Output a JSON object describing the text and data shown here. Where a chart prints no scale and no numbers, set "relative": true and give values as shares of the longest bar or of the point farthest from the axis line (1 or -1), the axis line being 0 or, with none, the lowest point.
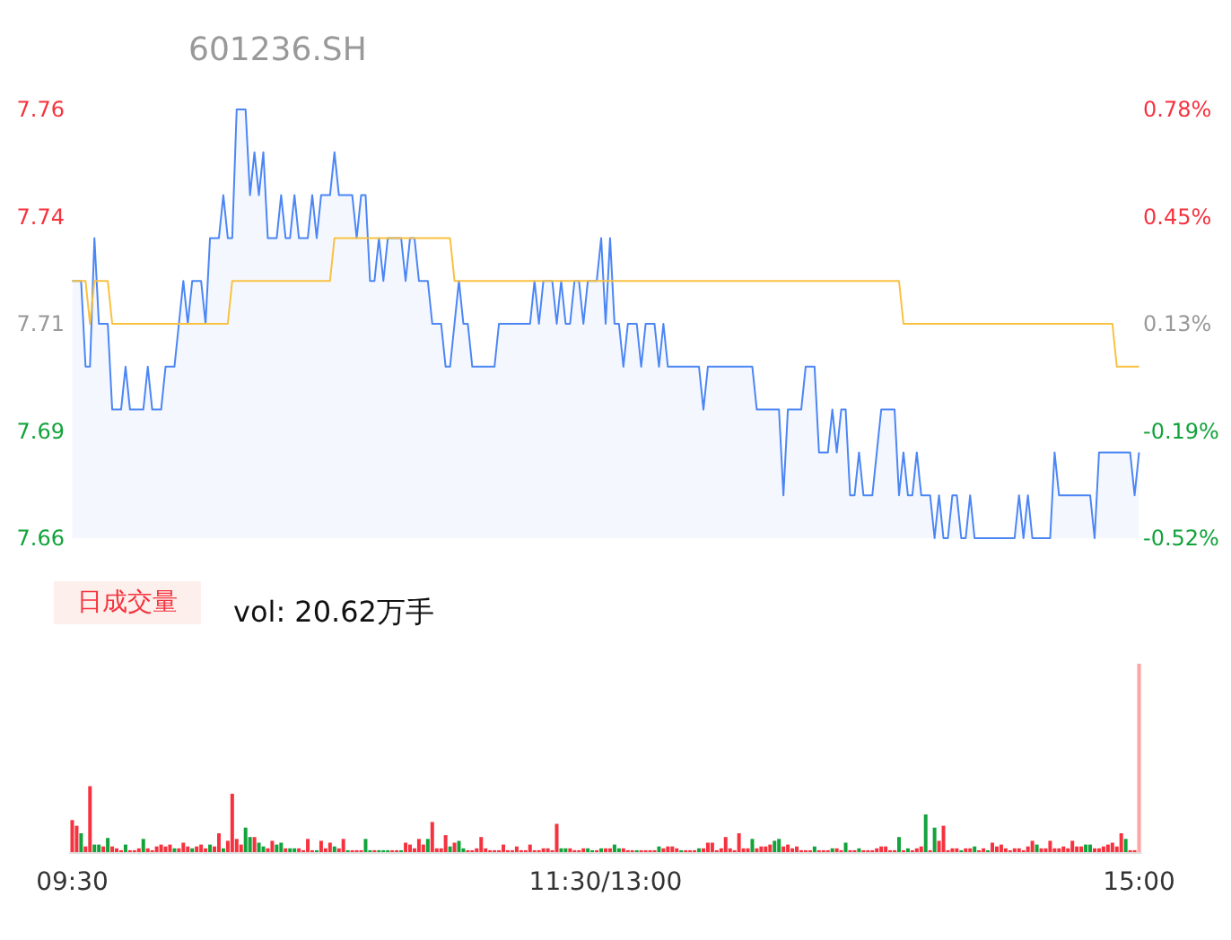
{
  "chart_data": [
    {
      "type": "area",
      "title": "601236.SH",
      "categories": [
        null,
        null,
        null,
        null,
        null,
        null,
        null,
        null,
        null,
        null,
        null,
        null,
        null,
        null,
        null,
        null,
        null,
        null,
        null,
        null,
        null,
        null,
        null,
        null,
        null,
        null,
        null,
        null,
        null,
        null,
        null,
        null,
        null,
        null,
        null,
        null,
        null,
        null,
        null,
        null,
        null,
        null,
        null,
        null,
        null,
        null,
        null,
        null,
        null,
        null,
        null,
        null,
        null,
        null,
        null,
        null,
        null,
        null,
        null,
        null,
        null,
        null,
        null,
        null,
        null,
        null,
        null,
        null,
        null,
        null,
        null,
        null,
        null,
        null,
        null,
        null,
        null,
        null,
        null,
        null,
        null,
        null,
        null,
        null,
        null,
        null,
        null,
        null,
        null,
        null,
        null,
        null,
        null,
        null,
        null,
        null,
        null,
        null,
        null,
        null,
        null,
        null,
        null,
        null,
        null,
        null,
        null,
        null,
        null,
        null,
        null,
        null,
        null,
        null,
        null,
        null,
        null,
        null,
        null,
        null,
        null,
        null,
        null,
        null,
        null,
        null,
        null,
        null,
        null,
        null,
        null,
        null,
        null,
        null,
        null,
        null,
        null,
        null,
        null,
        null,
        null,
        null,
        null,
        null,
        null,
        null,
        null,
        null,
        null,
        null,
        null,
        null,
        null,
        null,
        null,
        null,
        null,
        null,
        null,
        null,
        null,
        null,
        null,
        null,
        null,
        null,
        null,
        null,
        null,
        null,
        null,
        null,
        null,
        null,
        null,
        null,
        null,
        null,
        null,
        null,
        null,
        null,
        null,
        null,
        null,
        null,
        null,
        null,
        null,
        null,
        null,
        null,
        null,
        null,
        null,
        null,
        null,
        null,
        null,
        null,
        null,
        null,
        null,
        null,
        null,
        null,
        null,
        null,
        null,
        null,
        null,
        null,
        null,
        null,
        null,
        null,
        null,
        null,
        null,
        null,
        null,
        null,
        null,
        null,
        null,
        null,
        null,
        null,
        null,
        null,
        null,
        null,
        null,
        null,
        null,
        null,
        null,
        null,
        null,
        null,
        null
      ],
      "series": [
        {
          "type": "area",
          "color": "#4c86f5",
          "values": [
            7.72,
            7.72,
            7.72,
            7.7,
            7.7,
            7.73,
            7.71,
            7.71,
            7.71,
            7.69,
            7.69,
            7.69,
            7.7,
            7.69,
            7.69,
            7.69,
            7.69,
            7.7,
            7.69,
            7.69,
            7.69,
            7.7,
            7.7,
            7.7,
            7.71,
            7.72,
            7.71,
            7.72,
            7.72,
            7.72,
            7.71,
            7.73,
            7.73,
            7.73,
            7.74,
            7.73,
            7.73,
            7.76,
            7.76,
            7.76,
            7.74,
            7.75,
            7.74,
            7.75,
            7.73,
            7.73,
            7.73,
            7.74,
            7.73,
            7.73,
            7.74,
            7.73,
            7.73,
            7.73,
            7.74,
            7.73,
            7.74,
            7.74,
            7.74,
            7.75,
            7.74,
            7.74,
            7.74,
            7.74,
            7.73,
            7.74,
            7.74,
            7.72,
            7.72,
            7.73,
            7.72,
            7.73,
            7.73,
            7.73,
            7.73,
            7.72,
            7.73,
            7.73,
            7.72,
            7.72,
            7.72,
            7.71,
            7.71,
            7.71,
            7.7,
            7.7,
            7.71,
            7.72,
            7.71,
            7.71,
            7.7,
            7.7,
            7.7,
            7.7,
            7.7,
            7.7,
            7.71,
            7.71,
            7.71,
            7.71,
            7.71,
            7.71,
            7.71,
            7.71,
            7.72,
            7.71,
            7.72,
            7.72,
            7.72,
            7.71,
            7.72,
            7.71,
            7.71,
            7.72,
            7.72,
            7.71,
            7.72,
            7.72,
            7.72,
            7.73,
            7.71,
            7.73,
            7.71,
            7.71,
            7.7,
            7.71,
            7.71,
            7.71,
            7.7,
            7.71,
            7.71,
            7.71,
            7.7,
            7.71,
            7.7,
            7.7,
            7.7,
            7.7,
            7.7,
            7.7,
            7.7,
            7.7,
            7.69,
            7.7,
            7.7,
            7.7,
            7.7,
            7.7,
            7.7,
            7.7,
            7.7,
            7.7,
            7.7,
            7.7,
            7.69,
            7.69,
            7.69,
            7.69,
            7.69,
            7.69,
            7.67,
            7.69,
            7.69,
            7.69,
            7.69,
            7.7,
            7.7,
            7.7,
            7.68,
            7.68,
            7.68,
            7.69,
            7.68,
            7.69,
            7.69,
            7.67,
            7.67,
            7.68,
            7.67,
            7.67,
            7.67,
            7.68,
            7.69,
            7.69,
            7.69,
            7.69,
            7.67,
            7.68,
            7.67,
            7.67,
            7.68,
            7.67,
            7.67,
            7.67,
            7.66,
            7.67,
            7.66,
            7.66,
            7.67,
            7.67,
            7.66,
            7.66,
            7.67,
            7.66,
            7.66,
            7.66,
            7.66,
            7.66,
            7.66,
            7.66,
            7.66,
            7.66,
            7.66,
            7.67,
            7.66,
            7.67,
            7.66,
            7.66,
            7.66,
            7.66,
            7.66,
            7.68,
            7.67,
            7.67,
            7.67,
            7.67,
            7.67,
            7.67,
            7.67,
            7.67,
            7.66,
            7.68,
            7.68,
            7.68,
            7.68,
            7.68,
            7.68,
            7.68,
            7.68,
            7.67,
            7.68
          ]
        },
        {
          "type": "line",
          "color": "#f9c142",
          "values": [
            7.72,
            7.72,
            7.72,
            7.72,
            7.71,
            7.72,
            7.72,
            7.72,
            7.72,
            7.71,
            7.71,
            7.71,
            7.71,
            7.71,
            7.71,
            7.71,
            7.71,
            7.71,
            7.71,
            7.71,
            7.71,
            7.71,
            7.71,
            7.71,
            7.71,
            7.71,
            7.71,
            7.71,
            7.71,
            7.71,
            7.71,
            7.71,
            7.71,
            7.71,
            7.71,
            7.71,
            7.72,
            7.72,
            7.72,
            7.72,
            7.72,
            7.72,
            7.72,
            7.72,
            7.72,
            7.72,
            7.72,
            7.72,
            7.72,
            7.72,
            7.72,
            7.72,
            7.72,
            7.72,
            7.72,
            7.72,
            7.72,
            7.72,
            7.72,
            7.73,
            7.73,
            7.73,
            7.73,
            7.73,
            7.73,
            7.73,
            7.73,
            7.73,
            7.73,
            7.73,
            7.73,
            7.73,
            7.73,
            7.73,
            7.73,
            7.73,
            7.73,
            7.73,
            7.73,
            7.73,
            7.73,
            7.73,
            7.73,
            7.73,
            7.73,
            7.73,
            7.72,
            7.72,
            7.72,
            7.72,
            7.72,
            7.72,
            7.72,
            7.72,
            7.72,
            7.72,
            7.72,
            7.72,
            7.72,
            7.72,
            7.72,
            7.72,
            7.72,
            7.72,
            7.72,
            7.72,
            7.72,
            7.72,
            7.72,
            7.72,
            7.72,
            7.72,
            7.72,
            7.72,
            7.72,
            7.72,
            7.72,
            7.72,
            7.72,
            7.72,
            7.72,
            7.72,
            7.72,
            7.72,
            7.72,
            7.72,
            7.72,
            7.72,
            7.72,
            7.72,
            7.72,
            7.72,
            7.72,
            7.72,
            7.72,
            7.72,
            7.72,
            7.72,
            7.72,
            7.72,
            7.72,
            7.72,
            7.72,
            7.72,
            7.72,
            7.72,
            7.72,
            7.72,
            7.72,
            7.72,
            7.72,
            7.72,
            7.72,
            7.72,
            7.72,
            7.72,
            7.72,
            7.72,
            7.72,
            7.72,
            7.72,
            7.72,
            7.72,
            7.72,
            7.72,
            7.72,
            7.72,
            7.72,
            7.72,
            7.72,
            7.72,
            7.72,
            7.72,
            7.72,
            7.72,
            7.72,
            7.72,
            7.72,
            7.72,
            7.72,
            7.72,
            7.72,
            7.72,
            7.72,
            7.72,
            7.72,
            7.72,
            7.71,
            7.71,
            7.71,
            7.71,
            7.71,
            7.71,
            7.71,
            7.71,
            7.71,
            7.71,
            7.71,
            7.71,
            7.71,
            7.71,
            7.71,
            7.71,
            7.71,
            7.71,
            7.71,
            7.71,
            7.71,
            7.71,
            7.71,
            7.71,
            7.71,
            7.71,
            7.71,
            7.71,
            7.71,
            7.71,
            7.71,
            7.71,
            7.71,
            7.71,
            7.71,
            7.71,
            7.71,
            7.71,
            7.71,
            7.71,
            7.71,
            7.71,
            7.71,
            7.71,
            7.71,
            7.71,
            7.71,
            7.71,
            7.7,
            7.7,
            7.7,
            7.7,
            7.7,
            7.7
          ]
        }
      ],
      "ylim": [
        7.66,
        7.76
      ],
      "yticks": [
        7.66,
        {
          "value": 7.685,
          "label": "7.69"
        },
        7.71,
        {
          "value": 7.735,
          "label": "7.74"
        },
        7.76
      ],
      "y2lim": [
        -0.52,
        0.78
      ],
      "y2ticks": [
        {
          "value": -0.52,
          "label": "-0.52%"
        },
        {
          "value": -0.195,
          "label": "-0.19%"
        },
        {
          "value": 0.13,
          "label": "0.13%"
        },
        {
          "value": 0.455,
          "label": "0.45%"
        },
        {
          "value": 0.78,
          "label": "0.78%"
        }
      ],
      "grid": false,
      "marker": "none"
    },
    {
      "type": "bar",
      "relative": true,
      "title": "日成交量",
      "annotations": [
        "vol: 20.62万手"
      ],
      "categories": [
        "09:30",
        null,
        null,
        null,
        null,
        null,
        null,
        null,
        null,
        null,
        null,
        null,
        null,
        null,
        null,
        null,
        null,
        null,
        null,
        null,
        null,
        null,
        null,
        null,
        null,
        null,
        null,
        null,
        null,
        null,
        null,
        null,
        null,
        null,
        null,
        null,
        null,
        null,
        null,
        null,
        null,
        null,
        null,
        null,
        null,
        null,
        null,
        null,
        null,
        null,
        null,
        null,
        null,
        null,
        null,
        null,
        null,
        null,
        null,
        null,
        null,
        null,
        null,
        null,
        null,
        null,
        null,
        null,
        null,
        null,
        null,
        null,
        null,
        null,
        null,
        null,
        null,
        null,
        null,
        null,
        null,
        null,
        null,
        null,
        null,
        null,
        null,
        null,
        null,
        null,
        null,
        null,
        null,
        null,
        null,
        null,
        null,
        null,
        null,
        null,
        null,
        null,
        null,
        null,
        null,
        null,
        null,
        null,
        null,
        null,
        null,
        null,
        null,
        null,
        null,
        null,
        null,
        null,
        null,
        null,
        "11:30/13:00",
        null,
        null,
        null,
        null,
        null,
        null,
        null,
        null,
        null,
        null,
        null,
        null,
        null,
        null,
        null,
        null,
        null,
        null,
        null,
        null,
        null,
        null,
        null,
        null,
        null,
        null,
        null,
        null,
        null,
        null,
        null,
        null,
        null,
        null,
        null,
        null,
        null,
        null,
        null,
        null,
        null,
        null,
        null,
        null,
        null,
        null,
        null,
        null,
        null,
        null,
        null,
        null,
        null,
        null,
        null,
        null,
        null,
        null,
        null,
        null,
        null,
        null,
        null,
        null,
        null,
        null,
        null,
        null,
        null,
        null,
        null,
        null,
        null,
        null,
        null,
        null,
        null,
        null,
        null,
        null,
        null,
        null,
        null,
        null,
        null,
        null,
        null,
        null,
        null,
        null,
        null,
        null,
        null,
        null,
        null,
        null,
        null,
        null,
        null,
        null,
        null,
        null,
        null,
        null,
        null,
        null,
        null,
        null,
        null,
        null,
        null,
        null,
        null,
        null,
        null,
        null,
        null,
        null,
        null,
        "15:00"
      ],
      "values": [
        0.17,
        0.14,
        0.1,
        0.03,
        0.35,
        0.04,
        0.04,
        0.03,
        0.075,
        0.03,
        0.02,
        0.01,
        0.04,
        0.01,
        0.01,
        0.02,
        0.07,
        0.02,
        0.01,
        0.03,
        0.04,
        0.03,
        0.04,
        0.02,
        0.02,
        0.05,
        0.03,
        0.02,
        0.03,
        0.04,
        0.02,
        0.04,
        0.03,
        0.1,
        0.02,
        0.06,
        0.31,
        0.07,
        0.04,
        0.13,
        0.08,
        0.08,
        0.05,
        0.03,
        0.02,
        0.06,
        0.04,
        0.05,
        0.02,
        0.02,
        0.02,
        0.02,
        0.01,
        0.07,
        0.01,
        0.01,
        0.06,
        0.02,
        0.05,
        0.03,
        0.02,
        0.07,
        0.01,
        0.01,
        0.01,
        0.01,
        0.07,
        0.01,
        0.01,
        0.01,
        0.01,
        0.01,
        0.01,
        0.01,
        0.01,
        0.05,
        0.04,
        0.02,
        0.07,
        0.04,
        0.07,
        0.16,
        0.02,
        0.02,
        0.09,
        0.03,
        0.05,
        0.06,
        0.02,
        0.01,
        0.01,
        0.02,
        0.08,
        0.02,
        0.01,
        0.01,
        0.01,
        0.04,
        0.01,
        0.01,
        0.03,
        0.01,
        0.01,
        0.04,
        0.01,
        0.01,
        0.02,
        0.02,
        0.01,
        0.15,
        0.02,
        0.02,
        0.02,
        0.01,
        0.01,
        0.02,
        0.02,
        0.01,
        0.01,
        0.02,
        0.02,
        0.02,
        0.04,
        0.02,
        0.02,
        0.01,
        0.01,
        0.01,
        0.01,
        0.01,
        0.01,
        0.01,
        0.03,
        0.02,
        0.03,
        0.03,
        0.02,
        0.01,
        0.01,
        0.01,
        0.01,
        0.02,
        0.02,
        0.05,
        0.05,
        0.01,
        0.02,
        0.08,
        0.02,
        0.01,
        0.1,
        0.02,
        0.02,
        0.07,
        0.02,
        0.03,
        0.03,
        0.04,
        0.06,
        0.07,
        0.03,
        0.04,
        0.02,
        0.03,
        0.01,
        0.01,
        0.01,
        0.03,
        0.01,
        0.01,
        0.01,
        0.02,
        0.02,
        0.01,
        0.05,
        0.01,
        0.01,
        0.02,
        0.01,
        0.01,
        0.01,
        0.02,
        0.03,
        0.03,
        0.01,
        0.01,
        0.08,
        0.01,
        0.02,
        0.01,
        0.02,
        0.03,
        0.2,
        0.01,
        0.13,
        0.06,
        0.14,
        0.01,
        0.02,
        0.02,
        0.01,
        0.02,
        0.02,
        0.03,
        0.01,
        0.02,
        0.01,
        0.05,
        0.03,
        0.04,
        0.02,
        0.01,
        0.02,
        0.02,
        0.01,
        0.03,
        0.06,
        0.04,
        0.02,
        0.02,
        0.06,
        0.02,
        0.02,
        0.03,
        0.02,
        0.06,
        0.03,
        0.03,
        0.04,
        0.04,
        0.02,
        0.02,
        0.03,
        0.04,
        0.05,
        0.03,
        0.1,
        0.07,
        0.01,
        0.01,
        1
      ],
      "colors": [
        "#f5333f",
        "#f5333f",
        "#12a33b",
        "#f5333f",
        "#f5333f",
        "#12a33b",
        "#12a33b",
        "#f5333f",
        "#12a33b",
        "#f5333f",
        "#f5333f",
        "#f5333f",
        "#12a33b",
        "#f5333f",
        "#f5333f",
        "#f5333f",
        "#12a33b",
        "#f5333f",
        "#f5333f",
        "#f5333f",
        "#f5333f",
        "#f5333f",
        "#f5333f",
        "#12a33b",
        "#f5333f",
        "#f5333f",
        "#f5333f",
        "#12a33b",
        "#f5333f",
        "#f5333f",
        "#f5333f",
        "#12a33b",
        "#f5333f",
        "#f5333f",
        "#12a33b",
        "#f5333f",
        "#f5333f",
        "#f5333f",
        "#f5333f",
        "#12a33b",
        "#12a33b",
        "#f5333f",
        "#12a33b",
        "#12a33b",
        "#f5333f",
        "#f5333f",
        "#12a33b",
        "#12a33b",
        "#f5333f",
        "#12a33b",
        "#12a33b",
        "#f5333f",
        "#f5333f",
        "#f5333f",
        "#f5333f",
        "#12a33b",
        "#f5333f",
        "#f5333f",
        "#f5333f",
        "#12a33b",
        "#f5333f",
        "#f5333f",
        "#12a33b",
        "#f5333f",
        "#f5333f",
        "#f5333f",
        "#12a33b",
        "#12a33b",
        "#f5333f",
        "#12a33b",
        "#12a33b",
        "#12a33b",
        "#f5333f",
        "#f5333f",
        "#12a33b",
        "#f5333f",
        "#f5333f",
        "#f5333f",
        "#f5333f",
        "#f5333f",
        "#12a33b",
        "#f5333f",
        "#f5333f",
        "#f5333f",
        "#f5333f",
        "#12a33b",
        "#f5333f",
        "#12a33b",
        "#12a33b",
        "#f5333f",
        "#f5333f",
        "#f5333f",
        "#f5333f",
        "#f5333f",
        "#f5333f",
        "#f5333f",
        "#f5333f",
        "#f5333f",
        "#f5333f",
        "#f5333f",
        "#f5333f",
        "#f5333f",
        "#f5333f",
        "#f5333f",
        "#f5333f",
        "#f5333f",
        "#f5333f",
        "#f5333f",
        "#f5333f",
        "#f5333f",
        "#12a33b",
        "#12a33b",
        "#f5333f",
        "#f5333f",
        "#f5333f",
        "#f5333f",
        "#12a33b",
        "#12a33b",
        "#f5333f",
        "#12a33b",
        "#f5333f",
        "#f5333f",
        "#12a33b",
        "#12a33b",
        "#f5333f",
        "#f5333f",
        "#f5333f",
        "#12a33b",
        "#f5333f",
        "#f5333f",
        "#f5333f",
        "#f5333f",
        "#12a33b",
        "#f5333f",
        "#f5333f",
        "#f5333f",
        "#f5333f",
        "#12a33b",
        "#f5333f",
        "#f5333f",
        "#f5333f",
        "#12a33b",
        "#f5333f",
        "#f5333f",
        "#f5333f",
        "#f5333f",
        "#f5333f",
        "#f5333f",
        "#f5333f",
        "#f5333f",
        "#f5333f",
        "#f5333f",
        "#f5333f",
        "#12a33b",
        "#f5333f",
        "#f5333f",
        "#f5333f",
        "#f5333f",
        "#12a33b",
        "#12a33b",
        "#f5333f",
        "#f5333f",
        "#f5333f",
        "#f5333f",
        "#f5333f",
        "#f5333f",
        "#f5333f",
        "#12a33b",
        "#f5333f",
        "#f5333f",
        "#f5333f",
        "#12a33b",
        "#f5333f",
        "#f5333f",
        "#12a33b",
        "#f5333f",
        "#f5333f",
        "#12a33b",
        "#f5333f",
        "#f5333f",
        "#f5333f",
        "#f5333f",
        "#f5333f",
        "#f5333f",
        "#f5333f",
        "#f5333f",
        "#12a33b",
        "#f5333f",
        "#12a33b",
        "#f5333f",
        "#f5333f",
        "#f5333f",
        "#12a33b",
        "#f5333f",
        "#12a33b",
        "#f5333f",
        "#f5333f",
        "#f5333f",
        "#f5333f",
        "#f5333f",
        "#12a33b",
        "#f5333f",
        "#f5333f",
        "#12a33b",
        "#f5333f",
        "#f5333f",
        "#12a33b",
        "#f5333f",
        "#f5333f",
        "#f5333f",
        "#f5333f",
        "#f5333f",
        "#f5333f",
        "#f5333f",
        "#f5333f",
        "#f5333f",
        "#f5333f",
        "#12a33b",
        "#f5333f",
        "#f5333f",
        "#f5333f",
        "#f5333f",
        "#f5333f",
        "#f5333f",
        "#f5333f",
        "#f5333f",
        "#f5333f",
        "#f5333f",
        "#12a33b",
        "#12a33b",
        "#f5333f",
        "#f5333f",
        "#f5333f",
        "#f5333f",
        "#f5333f",
        "#f5333f",
        "#f5333f",
        "#12a33b",
        "#f5333f",
        "#f5333f",
        "#ffa3a3"
      ]
    }
  ]
}
